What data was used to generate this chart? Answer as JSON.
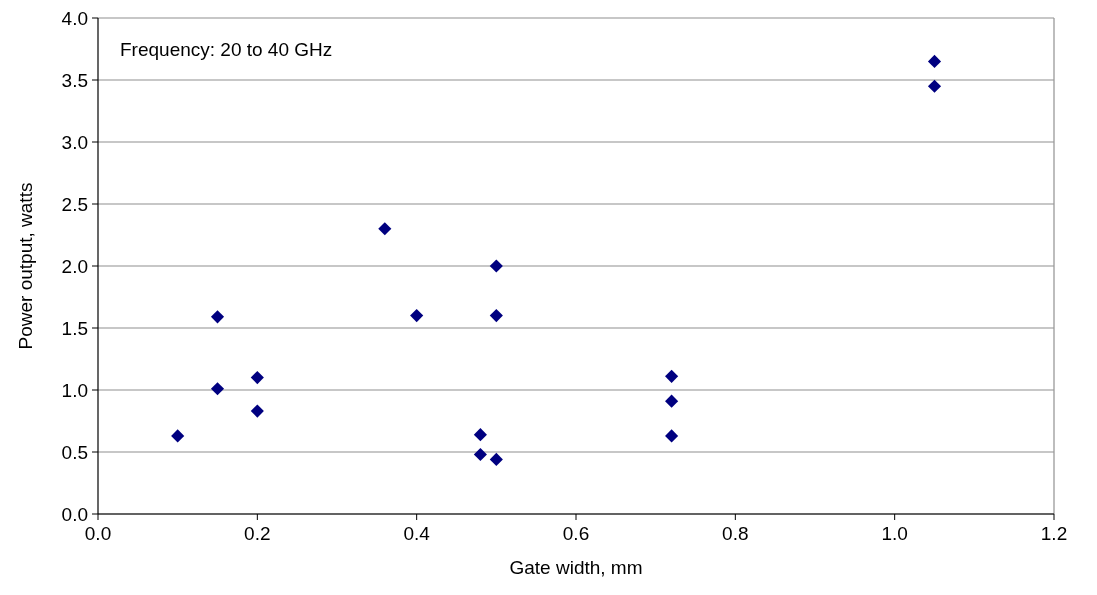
{
  "chart_data": {
    "type": "scatter",
    "xlabel": "Gate width, mm",
    "ylabel": "Power output, watts",
    "annotations": [
      "Frequency: 20 to 40 GHz"
    ],
    "x": [
      0.1,
      0.15,
      0.15,
      0.2,
      0.2,
      0.36,
      0.4,
      0.48,
      0.48,
      0.5,
      0.5,
      0.5,
      0.72,
      0.72,
      0.72,
      1.05,
      1.05
    ],
    "series": [
      {
        "color": "#000080",
        "values": [
          0.63,
          1.59,
          1.01,
          1.1,
          0.83,
          2.3,
          1.6,
          0.64,
          0.48,
          2.0,
          1.6,
          0.44,
          1.11,
          0.91,
          0.63,
          3.65,
          3.45
        ]
      }
    ],
    "xlim": [
      0,
      1.2
    ],
    "xticks": [
      {
        "value": 0,
        "label": "0.0"
      },
      0.2,
      0.4,
      0.6,
      0.8,
      {
        "value": 1,
        "label": "1.0"
      },
      1.2
    ],
    "ylim": [
      0,
      4
    ],
    "yticks": [
      {
        "value": 0,
        "label": "0.0"
      },
      0.5,
      {
        "value": 1,
        "label": "1.0"
      },
      1.5,
      {
        "value": 2,
        "label": "2.0"
      },
      2.5,
      {
        "value": 3,
        "label": "3.0"
      },
      3.5,
      {
        "value": 4,
        "label": "4.0"
      }
    ],
    "grid": "y",
    "marker": "diamond"
  }
}
